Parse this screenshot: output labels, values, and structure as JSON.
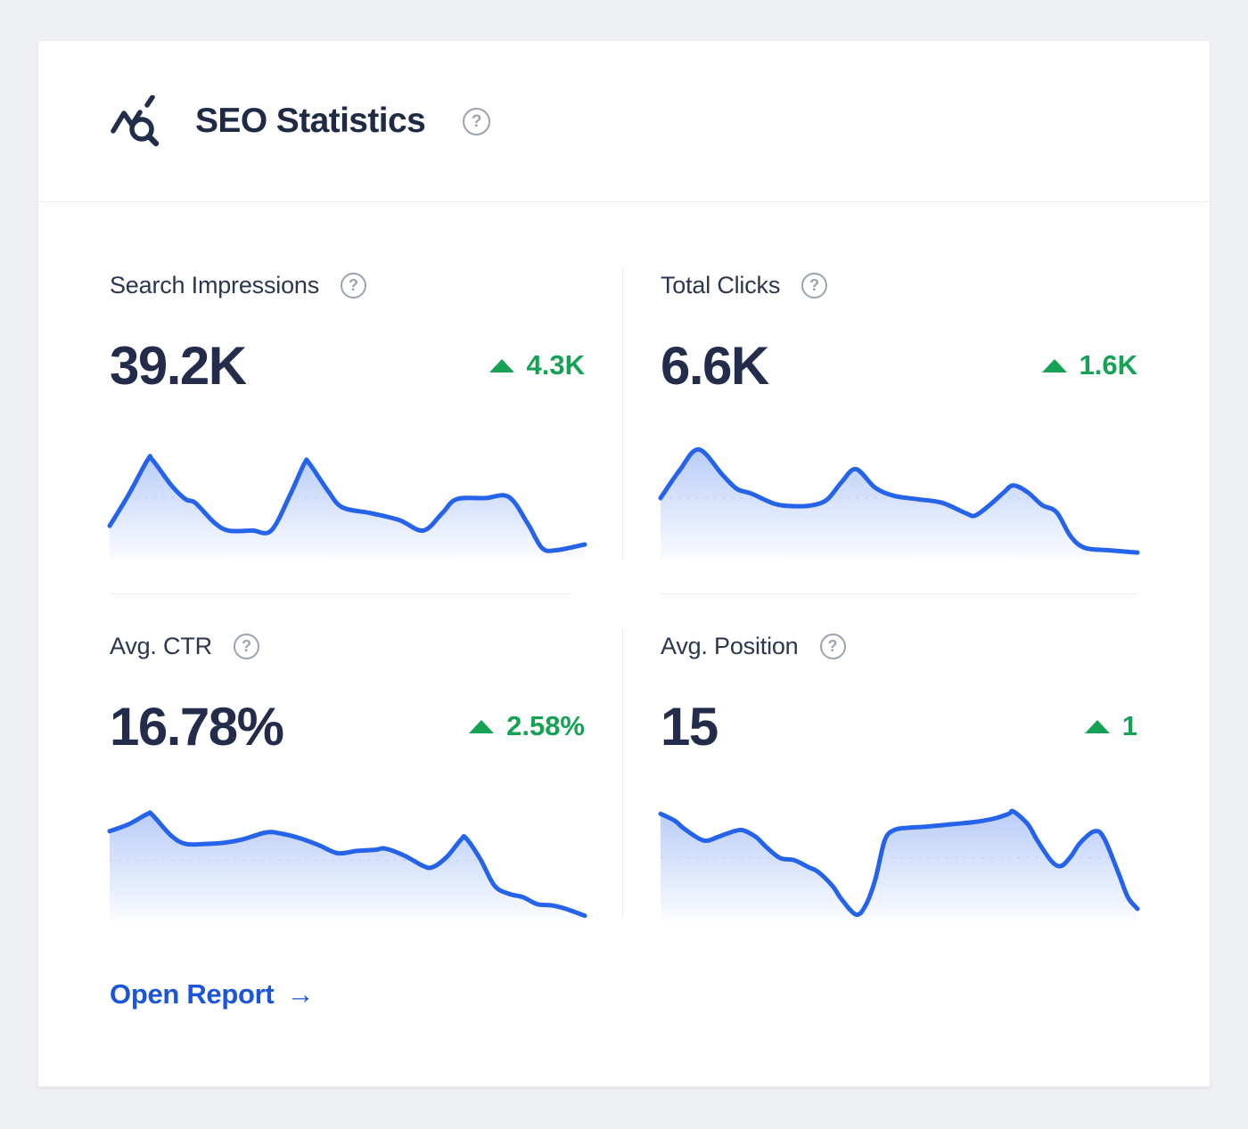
{
  "header": {
    "title": "SEO Statistics"
  },
  "icons": {
    "help_glyph": "?"
  },
  "colors": {
    "line_blue": "#2563eb",
    "delta_green": "#15a254",
    "link_blue": "#1a55db",
    "navy": "#222d4b",
    "page_bg": "#eef0f4",
    "divider": "#e9ebf0"
  },
  "metrics": [
    {
      "id": "search-impressions",
      "label": "Search Impressions",
      "value": "39.2K",
      "delta": "4.3K",
      "delta_direction": "up"
    },
    {
      "id": "total-clicks",
      "label": "Total Clicks",
      "value": "6.6K",
      "delta": "1.6K",
      "delta_direction": "up"
    },
    {
      "id": "avg-ctr",
      "label": "Avg. CTR",
      "value": "16.78%",
      "delta": "2.58%",
      "delta_direction": "up"
    },
    {
      "id": "avg-position",
      "label": "Avg. Position",
      "value": "15",
      "delta": "1",
      "delta_direction": "up"
    }
  ],
  "footer": {
    "link_label": "Open Report",
    "arrow": "→"
  },
  "chart_data": [
    {
      "type": "area",
      "metric": "Search Impressions",
      "headline_value": "39.2K",
      "x_axis": "time (unlabeled sparkline)",
      "y_axis": "impressions (unlabeled, relative scale 0-100)",
      "line_color": "#2563eb",
      "fill": "vertical gradient of line color fading to transparent",
      "ref_line_h": 51,
      "points": [
        [
          0,
          26
        ],
        [
          4,
          53
        ],
        [
          8,
          83
        ],
        [
          9,
          83
        ],
        [
          13,
          61
        ],
        [
          16,
          49
        ],
        [
          18,
          46
        ],
        [
          22,
          29
        ],
        [
          25,
          22
        ],
        [
          30,
          22
        ],
        [
          34,
          22
        ],
        [
          38,
          53
        ],
        [
          41,
          80
        ],
        [
          42,
          80
        ],
        [
          46,
          56
        ],
        [
          49,
          42
        ],
        [
          55,
          37
        ],
        [
          61,
          31
        ],
        [
          66,
          22
        ],
        [
          70,
          37
        ],
        [
          73,
          49
        ],
        [
          79,
          50
        ],
        [
          84,
          51
        ],
        [
          88,
          28
        ],
        [
          91,
          7
        ],
        [
          94,
          5
        ],
        [
          100,
          10
        ]
      ]
    },
    {
      "type": "area",
      "metric": "Total Clicks",
      "headline_value": "6.6K",
      "x_axis": "time (unlabeled sparkline)",
      "y_axis": "clicks (unlabeled, relative scale 0-100)",
      "line_color": "#2563eb",
      "fill": "vertical gradient of line color fading to transparent",
      "ref_line_h": 50,
      "points": [
        [
          0,
          50
        ],
        [
          4,
          74
        ],
        [
          8,
          92
        ],
        [
          13,
          70
        ],
        [
          16,
          58
        ],
        [
          19,
          54
        ],
        [
          24,
          45
        ],
        [
          28,
          43
        ],
        [
          32,
          44
        ],
        [
          35,
          49
        ],
        [
          38,
          64
        ],
        [
          41,
          75
        ],
        [
          45,
          59
        ],
        [
          49,
          52
        ],
        [
          54,
          49
        ],
        [
          59,
          46
        ],
        [
          64,
          37
        ],
        [
          66,
          35
        ],
        [
          69,
          44
        ],
        [
          72,
          55
        ],
        [
          74,
          61
        ],
        [
          77,
          55
        ],
        [
          80,
          44
        ],
        [
          83,
          38
        ],
        [
          86,
          17
        ],
        [
          89,
          7
        ],
        [
          94,
          5
        ],
        [
          100,
          3
        ]
      ]
    },
    {
      "type": "area",
      "metric": "Avg. CTR",
      "headline_value": "16.78%",
      "x_axis": "time (unlabeled sparkline)",
      "y_axis": "CTR % (unlabeled, relative scale 0-100)",
      "line_color": "#2563eb",
      "fill": "vertical gradient of line color fading to transparent",
      "ref_line_h": 49,
      "points": [
        [
          0,
          74
        ],
        [
          4,
          80
        ],
        [
          8,
          89
        ],
        [
          9,
          88
        ],
        [
          13,
          70
        ],
        [
          16,
          63
        ],
        [
          20,
          63
        ],
        [
          24,
          64
        ],
        [
          28,
          67
        ],
        [
          33,
          73
        ],
        [
          36,
          72
        ],
        [
          40,
          68
        ],
        [
          44,
          62
        ],
        [
          48,
          55
        ],
        [
          52,
          57
        ],
        [
          56,
          58
        ],
        [
          58,
          59
        ],
        [
          62,
          53
        ],
        [
          66,
          44
        ],
        [
          68,
          43
        ],
        [
          71,
          52
        ],
        [
          74,
          67
        ],
        [
          75,
          68
        ],
        [
          78,
          50
        ],
        [
          81,
          27
        ],
        [
          84,
          20
        ],
        [
          87,
          17
        ],
        [
          90,
          11
        ],
        [
          93,
          10
        ],
        [
          96,
          7
        ],
        [
          100,
          1
        ]
      ]
    },
    {
      "type": "area",
      "metric": "Avg. Position",
      "headline_value": "15",
      "x_axis": "time (unlabeled sparkline)",
      "y_axis": "position (unlabeled, relative scale 0-100)",
      "line_color": "#2563eb",
      "fill": "vertical gradient of line color fading to transparent",
      "ref_line_h": 51,
      "points": [
        [
          0,
          89
        ],
        [
          3,
          83
        ],
        [
          5,
          76
        ],
        [
          9,
          66
        ],
        [
          12,
          69
        ],
        [
          14,
          72
        ],
        [
          17,
          75
        ],
        [
          20,
          69
        ],
        [
          22,
          61
        ],
        [
          25,
          51
        ],
        [
          28,
          49
        ],
        [
          31,
          43
        ],
        [
          33,
          39
        ],
        [
          36,
          27
        ],
        [
          38,
          15
        ],
        [
          41,
          2
        ],
        [
          43,
          10
        ],
        [
          45,
          32
        ],
        [
          47,
          66
        ],
        [
          49,
          75
        ],
        [
          52,
          77
        ],
        [
          56,
          78
        ],
        [
          61,
          80
        ],
        [
          66,
          82
        ],
        [
          70,
          85
        ],
        [
          73,
          89
        ],
        [
          74,
          91
        ],
        [
          77,
          80
        ],
        [
          79,
          66
        ],
        [
          82,
          48
        ],
        [
          84,
          44
        ],
        [
          86,
          52
        ],
        [
          88,
          64
        ],
        [
          91,
          74
        ],
        [
          93,
          68
        ],
        [
          96,
          38
        ],
        [
          98,
          17
        ],
        [
          100,
          7
        ]
      ]
    }
  ]
}
